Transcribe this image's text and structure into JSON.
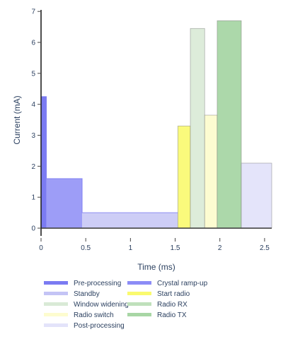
{
  "chart_data": {
    "type": "area",
    "xlabel": "Time (ms)",
    "ylabel": "Current (mA)",
    "xlim": [
      0,
      2.58
    ],
    "ylim": [
      -0.25,
      7.05
    ],
    "x_ticks": [
      "0",
      "0.5",
      "1",
      "1.5",
      "2",
      "2.5"
    ],
    "x_tick_values": [
      0,
      0.5,
      1,
      1.5,
      2,
      2.5
    ],
    "y_ticks": [
      "0",
      "1",
      "2",
      "3",
      "4",
      "5",
      "6",
      "7"
    ],
    "y_tick_values": [
      0,
      1,
      2,
      3,
      4,
      5,
      6,
      7
    ],
    "legend_position": "bottom",
    "series": [
      {
        "name": "Pre-processing",
        "start": 0.0,
        "end": 0.06,
        "current": 4.25,
        "color": "#7b7bf2",
        "opacity": 1.0
      },
      {
        "name": "Crystal ramp-up",
        "start": 0.06,
        "end": 0.46,
        "current": 1.6,
        "color": "#8c8cf6",
        "opacity": 0.85
      },
      {
        "name": "Standby",
        "start": 0.46,
        "end": 1.53,
        "current": 0.5,
        "color": "#c4c4f5",
        "opacity": 0.85
      },
      {
        "name": "Start radio",
        "start": 1.53,
        "end": 1.67,
        "current": 3.3,
        "color": "#fafa6e",
        "opacity": 0.9
      },
      {
        "name": "Window widening",
        "start": 1.67,
        "end": 1.83,
        "current": 6.45,
        "color": "#d9ead6",
        "opacity": 0.9
      },
      {
        "name": "Radio RX",
        "start": 1.67,
        "end": 1.83,
        "current": 6.45,
        "color": "#bfe0bb",
        "opacity": 0.0
      },
      {
        "name": "Radio switch",
        "start": 1.83,
        "end": 1.97,
        "current": 3.65,
        "color": "#fdfccf",
        "opacity": 0.95
      },
      {
        "name": "Radio TX",
        "start": 1.97,
        "end": 2.24,
        "current": 6.7,
        "color": "#a8d6a5",
        "opacity": 0.95
      },
      {
        "name": "Post-processing",
        "start": 2.24,
        "end": 2.58,
        "current": 2.1,
        "color": "#e3e3fa",
        "opacity": 0.95
      }
    ],
    "legend": [
      {
        "label": "Pre-processing",
        "color": "#7b7bf2"
      },
      {
        "label": "Crystal ramp-up",
        "color": "#8c8cf6"
      },
      {
        "label": "Standby",
        "color": "#c4c4f5"
      },
      {
        "label": "Start radio",
        "color": "#fafa6e"
      },
      {
        "label": "Window widening",
        "color": "#d9ead6"
      },
      {
        "label": "Radio RX",
        "color": "#bfe0bb"
      },
      {
        "label": "Radio switch",
        "color": "#fdfccf"
      },
      {
        "label": "Radio TX",
        "color": "#a8d6a5"
      },
      {
        "label": "Post-processing",
        "color": "#e3e3fa"
      }
    ]
  }
}
